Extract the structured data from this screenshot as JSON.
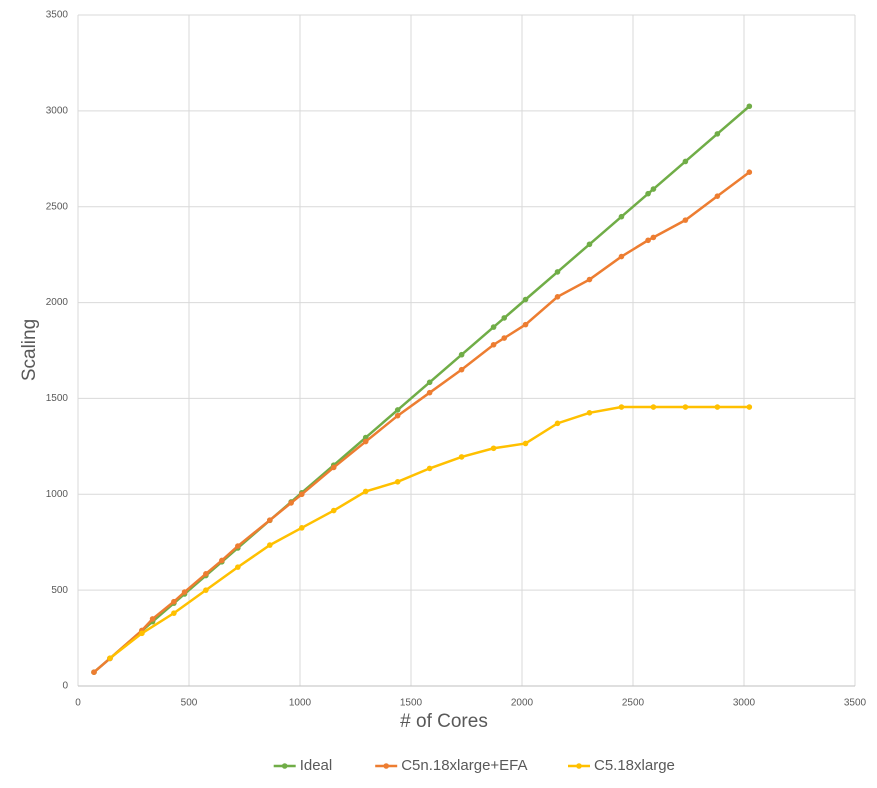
{
  "chart_data": {
    "type": "line",
    "x_label": "# of Cores",
    "y_label": "Scaling",
    "xlim": [
      0,
      3500
    ],
    "xticks": [
      0,
      500,
      1000,
      1500,
      2000,
      2500,
      3000,
      3500
    ],
    "ylim": [
      0,
      3500
    ],
    "yticks": [
      0,
      500,
      1000,
      1500,
      2000,
      2500,
      3000,
      3500
    ],
    "grid": true,
    "legend": "bottom",
    "series": [
      {
        "name": "Ideal",
        "color": "#70ad47",
        "x": [
          72,
          144,
          288,
          336,
          432,
          480,
          576,
          648,
          720,
          864,
          960,
          1008,
          1152,
          1296,
          1440,
          1584,
          1728,
          1872,
          1920,
          2016,
          2160,
          2304,
          2448,
          2568,
          2592,
          2736,
          2880,
          3024
        ],
        "values": [
          72,
          144,
          288,
          336,
          432,
          480,
          576,
          648,
          720,
          864,
          960,
          1008,
          1152,
          1296,
          1440,
          1584,
          1728,
          1872,
          1920,
          2016,
          2160,
          2304,
          2448,
          2568,
          2592,
          2736,
          2880,
          3024
        ]
      },
      {
        "name": "C5n.18xlarge+EFA",
        "color": "#ed7d31",
        "x": [
          72,
          144,
          288,
          336,
          432,
          480,
          576,
          648,
          720,
          864,
          960,
          1008,
          1152,
          1296,
          1440,
          1584,
          1728,
          1872,
          1920,
          2016,
          2160,
          2304,
          2448,
          2568,
          2592,
          2736,
          2880,
          3024
        ],
        "values": [
          72,
          144,
          290,
          350,
          440,
          490,
          585,
          655,
          730,
          865,
          955,
          1000,
          1140,
          1275,
          1410,
          1530,
          1650,
          1780,
          1815,
          1885,
          2030,
          2120,
          2240,
          2325,
          2340,
          2430,
          2555,
          2680
        ]
      },
      {
        "name": "C5.18xlarge",
        "color": "#ffc000",
        "x": [
          144,
          288,
          432,
          576,
          720,
          864,
          1008,
          1152,
          1296,
          1440,
          1584,
          1728,
          1872,
          2016,
          2160,
          2304,
          2448,
          2592,
          2736,
          2880,
          3024
        ],
        "values": [
          145,
          275,
          380,
          500,
          620,
          735,
          825,
          915,
          1015,
          1065,
          1135,
          1195,
          1240,
          1265,
          1370,
          1425,
          1455,
          1455,
          1455,
          1455,
          1455
        ]
      }
    ]
  }
}
